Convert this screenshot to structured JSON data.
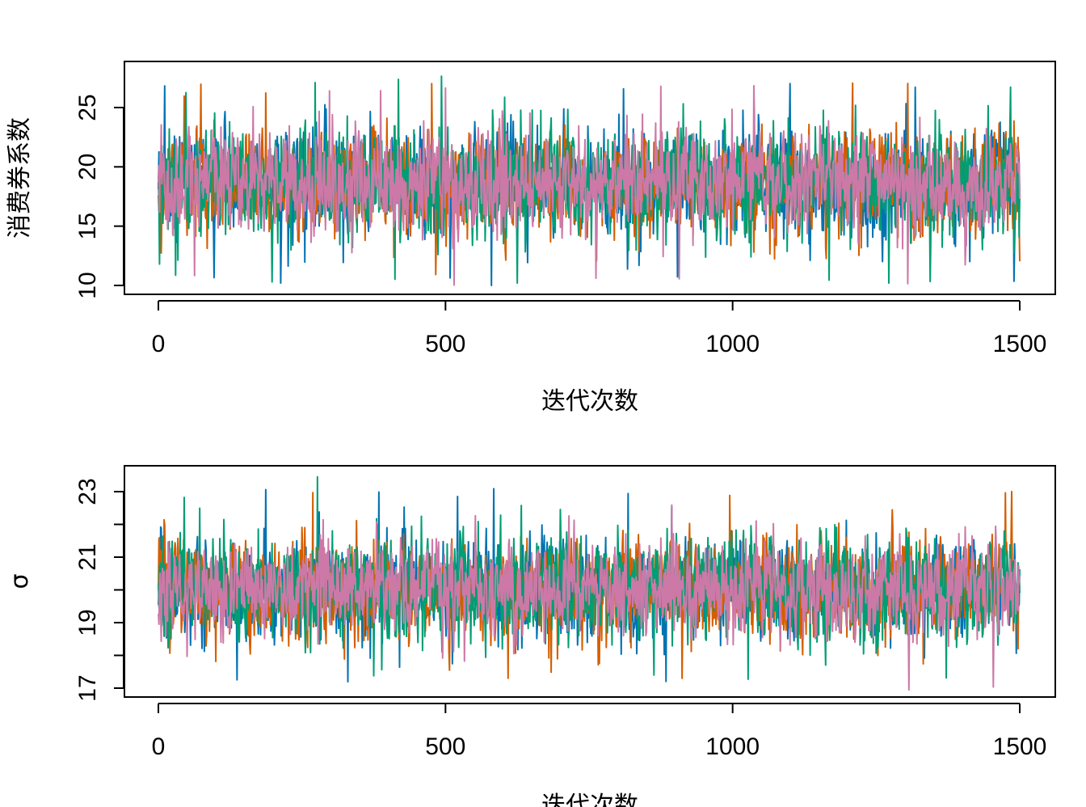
{
  "chart_data": [
    {
      "type": "line",
      "title": "",
      "xlabel": "迭代次数",
      "ylabel": "消费券系数",
      "xlim": [
        0,
        1500
      ],
      "ylim": [
        10,
        28
      ],
      "x_ticks": [
        0,
        500,
        1000,
        1500
      ],
      "y_ticks": [
        10,
        15,
        20,
        25
      ],
      "y_minor_ticks": [],
      "grid": false,
      "legend": "none",
      "iterations": 1500,
      "series": [
        {
          "color": "#0072B2",
          "mean": 18.6,
          "sd": 2.4,
          "min": 10.0,
          "max": 27.2
        },
        {
          "color": "#D55E00",
          "mean": 18.6,
          "sd": 2.4,
          "min": 10.0,
          "max": 27.1
        },
        {
          "color": "#009E73",
          "mean": 18.6,
          "sd": 2.5,
          "min": 10.2,
          "max": 28.1
        },
        {
          "color": "#CC79A7",
          "mean": 18.6,
          "sd": 2.3,
          "min": 10.0,
          "max": 27.1
        }
      ]
    },
    {
      "type": "line",
      "title": "",
      "xlabel": "迭代次数",
      "ylabel": "σ",
      "xlim": [
        0,
        1500
      ],
      "ylim": [
        17,
        23.6
      ],
      "x_ticks": [
        0,
        500,
        1000,
        1500
      ],
      "y_ticks": [
        17,
        19,
        21,
        23
      ],
      "y_minor_ticks": [
        18,
        20,
        22
      ],
      "grid": false,
      "legend": "none",
      "iterations": 1500,
      "series": [
        {
          "color": "#0072B2",
          "mean": 20.0,
          "sd": 0.85,
          "min": 17.0,
          "max": 23.1
        },
        {
          "color": "#D55E00",
          "mean": 20.0,
          "sd": 0.85,
          "min": 17.3,
          "max": 23.2
        },
        {
          "color": "#009E73",
          "mean": 20.0,
          "sd": 0.9,
          "min": 17.2,
          "max": 23.6
        },
        {
          "color": "#CC79A7",
          "mean": 20.0,
          "sd": 0.8,
          "min": 16.9,
          "max": 22.8
        }
      ]
    }
  ]
}
